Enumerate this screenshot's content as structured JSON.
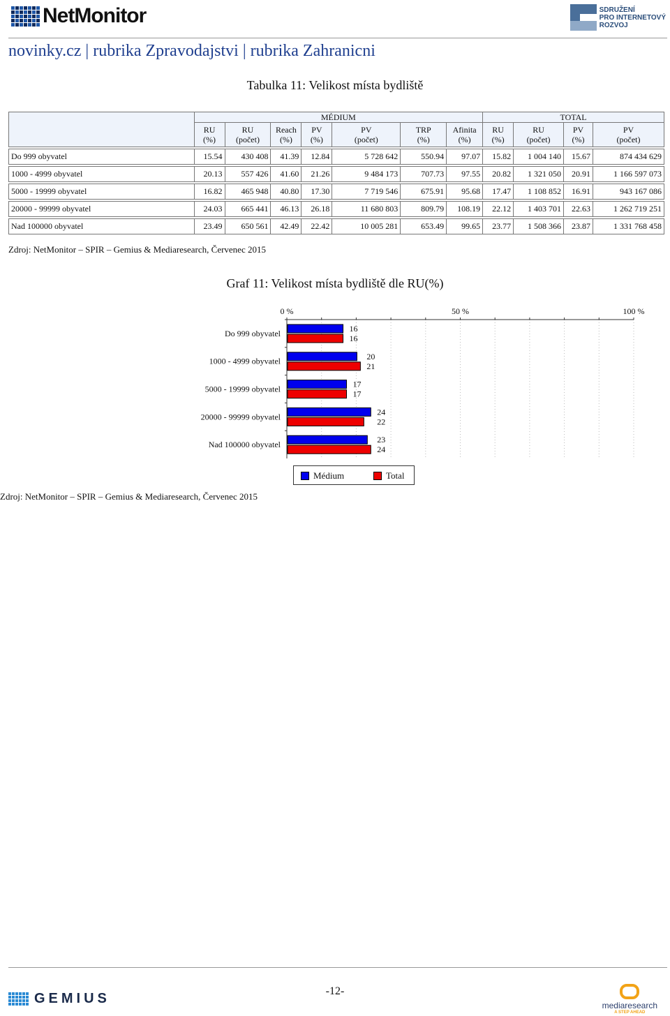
{
  "header": {
    "logo_left": "NetMonitor",
    "logo_right_lines": [
      "SDRUŽENÍ",
      "PRO INTERNETOVÝ",
      "ROZVOJ"
    ],
    "doc_title": "novinky.cz | rubrika Zpravodajstvi | rubrika Zahranicni"
  },
  "table": {
    "title": "Tabulka 11: Velikost místa bydliště",
    "group_medium": "MÉDIUM",
    "group_total": "TOTAL",
    "medium_columns": [
      {
        "l1": "RU",
        "l2": "(%)"
      },
      {
        "l1": "RU",
        "l2": "(počet)"
      },
      {
        "l1": "Reach",
        "l2": "(%)"
      },
      {
        "l1": "PV",
        "l2": "(%)"
      },
      {
        "l1": "PV",
        "l2": "(počet)"
      },
      {
        "l1": "TRP",
        "l2": "(%)"
      },
      {
        "l1": "Afinita",
        "l2": "(%)"
      }
    ],
    "total_columns": [
      {
        "l1": "RU",
        "l2": "(%)"
      },
      {
        "l1": "RU",
        "l2": "(počet)"
      },
      {
        "l1": "PV",
        "l2": "(%)"
      },
      {
        "l1": "PV",
        "l2": "(počet)"
      }
    ],
    "rows": [
      {
        "label": "Do 999 obyvatel",
        "cells": [
          "15.54",
          "430 408",
          "41.39",
          "12.84",
          "5 728 642",
          "550.94",
          "97.07",
          "15.82",
          "1 004 140",
          "15.67",
          "874 434 629"
        ]
      },
      {
        "label": "1000 - 4999 obyvatel",
        "cells": [
          "20.13",
          "557 426",
          "41.60",
          "21.26",
          "9 484 173",
          "707.73",
          "97.55",
          "20.82",
          "1 321 050",
          "20.91",
          "1 166 597 073"
        ]
      },
      {
        "label": "5000 - 19999 obyvatel",
        "cells": [
          "16.82",
          "465 948",
          "40.80",
          "17.30",
          "7 719 546",
          "675.91",
          "95.68",
          "17.47",
          "1 108 852",
          "16.91",
          "943 167 086"
        ]
      },
      {
        "label": "20000 - 99999 obyvatel",
        "cells": [
          "24.03",
          "665 441",
          "46.13",
          "26.18",
          "11 680 803",
          "809.79",
          "108.19",
          "22.12",
          "1 403 701",
          "22.63",
          "1 262 719 251"
        ]
      },
      {
        "label": "Nad 100000 obyvatel",
        "cells": [
          "23.49",
          "650 561",
          "42.49",
          "22.42",
          "10 005 281",
          "653.49",
          "99.65",
          "23.77",
          "1 508 366",
          "23.87",
          "1 331 768 458"
        ]
      }
    ],
    "source": "Zdroj: NetMonitor – SPIR – Gemius & Mediaresearch, Červenec 2015"
  },
  "chart_data": {
    "type": "bar",
    "orientation": "horizontal",
    "title": "Graf 11: Velikost místa bydliště dle RU(%)",
    "categories": [
      "Do 999 obyvatel",
      "1000 - 4999 obyvatel",
      "5000 - 19999 obyvatel",
      "20000 - 99999 obyvatel",
      "Nad 100000 obyvatel"
    ],
    "series": [
      {
        "name": "Médium",
        "values": [
          16,
          20,
          17,
          24,
          23
        ],
        "color": "#0000ee"
      },
      {
        "name": "Total",
        "values": [
          16,
          21,
          17,
          22,
          24
        ],
        "color": "#ee0000"
      }
    ],
    "xlim": [
      0,
      100
    ],
    "xticks": [
      "0 %",
      "50 %",
      "100 %"
    ],
    "grid": true,
    "legend": "bottom"
  },
  "chart_source": "Zdroj: NetMonitor – SPIR – Gemius & Mediaresearch, Červenec 2015",
  "footer": {
    "logo_left": "GEMIUS",
    "page_number": "-12-",
    "logo_right": "mediaresearch",
    "logo_right_tag": "A STEP AHEAD"
  }
}
